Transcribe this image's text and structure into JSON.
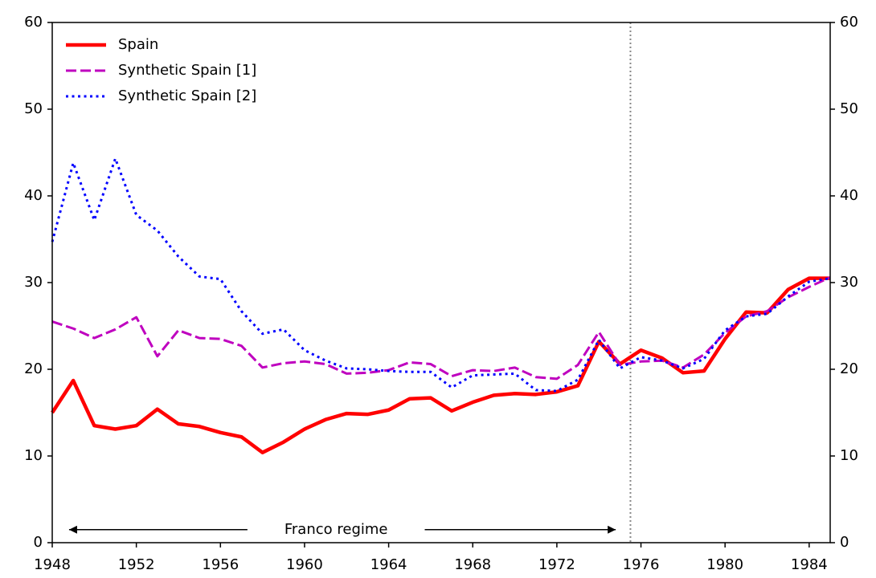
{
  "chart_data": {
    "type": "line",
    "x": [
      1948,
      1949,
      1950,
      1951,
      1952,
      1953,
      1954,
      1955,
      1956,
      1957,
      1958,
      1959,
      1960,
      1961,
      1962,
      1963,
      1964,
      1965,
      1966,
      1967,
      1968,
      1969,
      1970,
      1971,
      1972,
      1973,
      1974,
      1975,
      1976,
      1977,
      1978,
      1979,
      1980,
      1981,
      1982,
      1983,
      1984,
      1985
    ],
    "series": [
      {
        "name": "Spain",
        "color": "#ff0000",
        "style": "solid",
        "values": [
          15.0,
          18.7,
          13.5,
          13.1,
          13.5,
          15.4,
          13.7,
          13.4,
          12.7,
          12.2,
          10.4,
          11.6,
          13.1,
          14.2,
          14.9,
          14.8,
          15.3,
          16.6,
          16.7,
          15.2,
          16.2,
          17.0,
          17.2,
          17.1,
          17.4,
          18.1,
          23.2,
          20.6,
          22.2,
          21.3,
          19.6,
          19.8,
          23.5,
          26.6,
          26.5,
          29.2,
          30.5,
          30.5
        ]
      },
      {
        "name": "Synthetic Spain [1]",
        "color": "#bf00bf",
        "style": "dashed",
        "values": [
          25.5,
          24.7,
          23.6,
          24.6,
          26.0,
          21.5,
          24.5,
          23.6,
          23.5,
          22.7,
          20.2,
          20.7,
          20.9,
          20.6,
          19.5,
          19.6,
          19.9,
          20.8,
          20.6,
          19.2,
          19.9,
          19.8,
          20.2,
          19.1,
          18.9,
          20.5,
          24.3,
          20.5,
          20.9,
          21.0,
          20.2,
          21.7,
          24.2,
          26.1,
          26.7,
          28.3,
          29.5,
          30.6
        ]
      },
      {
        "name": "Synthetic Spain [2]",
        "color": "#0000ff",
        "style": "dotted",
        "values": [
          34.7,
          43.8,
          37.2,
          44.3,
          37.8,
          36.0,
          33.0,
          30.7,
          30.4,
          26.7,
          24.1,
          24.6,
          22.2,
          21.0,
          20.1,
          20.0,
          19.8,
          19.7,
          19.7,
          17.9,
          19.3,
          19.4,
          19.5,
          17.6,
          17.5,
          18.8,
          23.4,
          20.1,
          21.4,
          21.0,
          20.1,
          21.2,
          24.5,
          26.1,
          26.4,
          28.4,
          30.1,
          30.5
        ]
      }
    ],
    "xlim": [
      1948,
      1985
    ],
    "xticks": [
      1948,
      1952,
      1956,
      1960,
      1964,
      1968,
      1972,
      1976,
      1980,
      1984
    ],
    "ylim": [
      0,
      60
    ],
    "yticks": [
      0,
      10,
      20,
      30,
      40,
      50,
      60
    ],
    "y2lim": [
      0,
      60
    ],
    "y2ticks": [
      0,
      10,
      20,
      30,
      40,
      50,
      60
    ],
    "legend": "upper left",
    "vline": 1975.5,
    "annotation": {
      "text": "Franco regime",
      "x": 1961.5,
      "y": 1.5,
      "arrow_start": 1948.8,
      "arrow_end": 1974.8
    }
  }
}
